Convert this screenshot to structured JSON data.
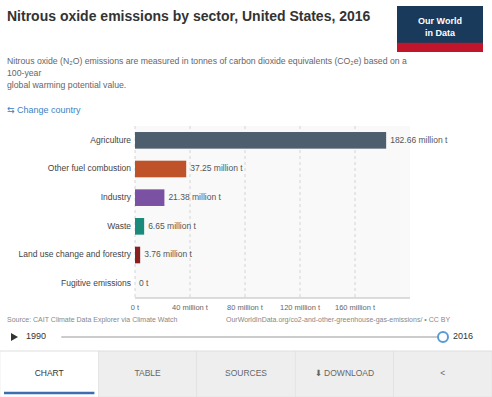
{
  "chart_data": {
    "type": "bar",
    "orientation": "horizontal",
    "title": "Nitrous oxide emissions by sector, United States, 2016",
    "subtitle": "Nitrous oxide (N₂O) emissions are measured in tonnes of carbon dioxide equivalents (CO₂e) based on a\n100-year\nglobal warming potential value.",
    "categories": [
      "Agriculture",
      "Other fuel combustion",
      "Industry",
      "Waste",
      "Land use change and forestry",
      "Fugitive emissions"
    ],
    "values": [
      182.66,
      37.25,
      21.38,
      6.65,
      3.76,
      0
    ],
    "value_labels": [
      "182.66 million t",
      "37.25 million t",
      "21.38 million t",
      "6.65 million t",
      "3.76 million t",
      "0 t"
    ],
    "data_labels": true,
    "colors": [
      "#4d5f6e",
      "#c0522a",
      "#7b52a3",
      "#1a8a7a",
      "#8b2020",
      "#aaaaaa"
    ],
    "xlim": [
      0,
      200
    ],
    "xticks": [
      {
        "value": 0,
        "label": "0 t"
      },
      {
        "value": 40,
        "label": "40 million t"
      },
      {
        "value": 80,
        "label": "80 million t"
      },
      {
        "value": 120,
        "label": "120 million t"
      },
      {
        "value": 160,
        "label": "160 million t"
      }
    ],
    "grid": true,
    "annotations": [
      "⇆ Change country",
      "Our World",
      "in Data",
      "Source: CAIT Climate Data Explorer via Climate Watch",
      "OurWorldInData.org/co2-and-other-greenhouse-gas-emissions/ • CC BY",
      "1990",
      "2016",
      "CHART",
      "TABLE",
      "SOURCES",
      "⬇ DOWNLOAD",
      "<"
    ]
  }
}
